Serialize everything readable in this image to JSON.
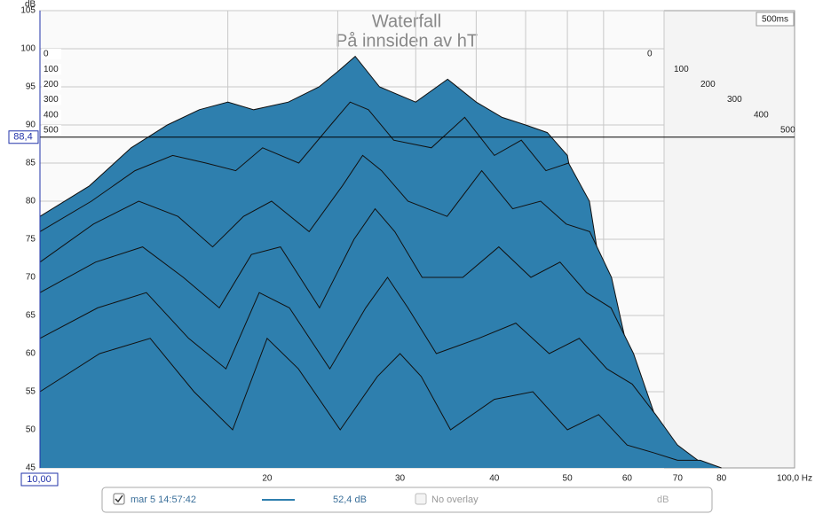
{
  "chart_data": {
    "type": "waterfall",
    "title": "Waterfall",
    "subtitle": "På innsiden av hT",
    "y_unit": "dB",
    "time_span": "500ms",
    "xlim": [
      10,
      100
    ],
    "log_x": true,
    "xticks": [
      20,
      30,
      40,
      50,
      60,
      70,
      80,
      {
        "value": 100,
        "label": "100,0 Hz"
      }
    ],
    "ylim": [
      45,
      105
    ],
    "yticks": [
      45,
      50,
      55,
      60,
      65,
      70,
      75,
      80,
      85,
      90,
      95,
      100,
      105
    ],
    "zticks": [
      0,
      100,
      200,
      300,
      400,
      500
    ],
    "grid": true,
    "cursor_y": {
      "value": 88.4,
      "label": "88,4"
    },
    "cursor_x": {
      "value": 10,
      "label": "10,00"
    },
    "x": [
      10,
      12,
      14,
      16,
      18,
      20,
      22,
      25,
      28,
      30,
      32,
      35,
      40,
      45,
      50,
      55,
      60,
      65,
      70,
      75,
      80
    ],
    "color": "#2e7fae",
    "series": [
      {
        "name": "0",
        "values": [
          78,
          82,
          87,
          90,
          92,
          93,
          92,
          93,
          95,
          97,
          99,
          95,
          93,
          96,
          93,
          91,
          90,
          89,
          86,
          72,
          58
        ]
      },
      {
        "name": "100",
        "values": [
          76,
          80,
          84,
          86,
          85,
          84,
          87,
          85,
          90,
          93,
          92,
          88,
          87,
          91,
          86,
          88,
          84,
          85,
          80,
          64,
          52
        ]
      },
      {
        "name": "200",
        "values": [
          72,
          77,
          80,
          78,
          74,
          78,
          80,
          76,
          82,
          86,
          84,
          80,
          78,
          84,
          79,
          80,
          77,
          76,
          70,
          58,
          50
        ]
      },
      {
        "name": "300",
        "values": [
          68,
          72,
          74,
          70,
          66,
          73,
          74,
          66,
          75,
          79,
          76,
          70,
          70,
          74,
          70,
          72,
          68,
          66,
          60,
          52,
          48
        ]
      },
      {
        "name": "400",
        "values": [
          62,
          66,
          68,
          62,
          58,
          68,
          66,
          58,
          66,
          70,
          66,
          60,
          62,
          64,
          60,
          62,
          58,
          56,
          52,
          48,
          46
        ]
      },
      {
        "name": "500",
        "values": [
          55,
          60,
          62,
          55,
          50,
          62,
          58,
          50,
          57,
          60,
          57,
          50,
          54,
          55,
          50,
          52,
          48,
          47,
          46,
          46,
          45
        ]
      }
    ]
  },
  "footer": {
    "timestamp": "mar 5 14:57:42",
    "level": "52,4 dB",
    "overlay": "No overlay",
    "overlay_unit": "dB"
  }
}
